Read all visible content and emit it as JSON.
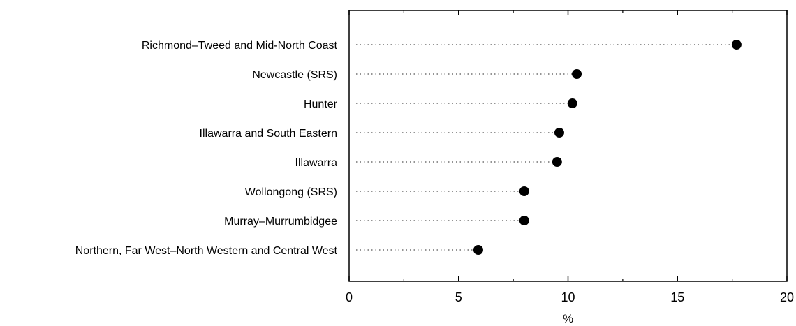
{
  "chart_data": {
    "type": "scatter",
    "title": "",
    "xlabel": "%",
    "ylabel": "",
    "xlim": [
      0,
      20
    ],
    "xticks": [
      0,
      5,
      10,
      15,
      20
    ],
    "grid": false,
    "legend": "none",
    "categories": [
      "Richmond–Tweed and Mid-North Coast",
      "Newcastle (SRS)",
      "Hunter",
      "Illawarra and South Eastern",
      "Illawarra",
      "Wollongong (SRS)",
      "Murray–Murrumbidgee",
      "Northern, Far West–North Western and Central West"
    ],
    "values": [
      17.7,
      10.4,
      10.2,
      9.6,
      9.5,
      8.0,
      8.0,
      5.9
    ],
    "colors": {
      "marker": "#000000",
      "leader": "#555555",
      "axis": "#000000"
    }
  }
}
